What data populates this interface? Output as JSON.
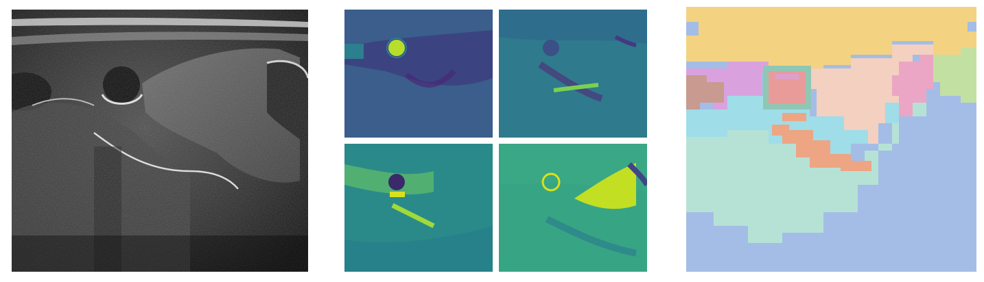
{
  "palette": {
    "ultrasound": {
      "background": "#0d0d0d",
      "tissue_dark": "#2a2a2a",
      "tissue_mid": "#5a5a5a",
      "tissue_bright": "#b8b8b8",
      "echo_white": "#e8e8e8"
    },
    "viridis": [
      "#440154",
      "#3b528b",
      "#21918c",
      "#5ec962",
      "#fde725"
    ],
    "segmentation": {
      "top_band": "#f3d282",
      "magenta": "#d9a2df",
      "brown_pink": "#c99a8f",
      "vessel_fill": "#e99b9a",
      "vessel_ring": "#8fc7b4",
      "peach": "#f3d0c0",
      "pink": "#eaa6c4",
      "light_green": "#c3e0a3",
      "cyan": "#9fdde8",
      "orange": "#eda584",
      "mint": "#b6e2d6",
      "blue": "#a4bde6"
    }
  }
}
